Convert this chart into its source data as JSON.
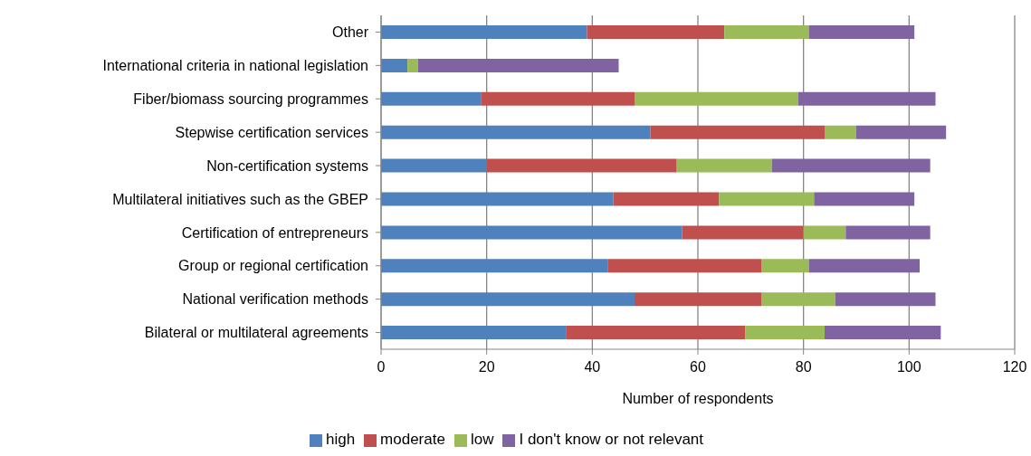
{
  "chart_data": {
    "type": "bar",
    "orientation": "horizontal",
    "stacked": true,
    "xlabel": "Number of respondents",
    "categories": [
      "Other",
      "International criteria in national legislation",
      "Fiber/biomass sourcing programmes",
      "Stepwise certification services",
      "Non-certification systems",
      "Multilateral initiatives such as the GBEP",
      "Certification of entrepreneurs",
      "Group or regional certification",
      "National verification methods",
      "Bilateral or multilateral agreements"
    ],
    "series": [
      {
        "name": "high",
        "color": "#4f81bd",
        "values": [
          39,
          5,
          19,
          51,
          20,
          44,
          57,
          43,
          48,
          35
        ]
      },
      {
        "name": "moderate",
        "color": "#c0504d",
        "values": [
          26,
          0,
          29,
          33,
          36,
          20,
          23,
          29,
          24,
          34
        ]
      },
      {
        "name": "low",
        "color": "#9bbb59",
        "values": [
          16,
          2,
          31,
          6,
          18,
          18,
          8,
          9,
          14,
          15
        ]
      },
      {
        "name": "I don't know or not relevant",
        "color": "#8064a2",
        "values": [
          20,
          38,
          26,
          17,
          30,
          19,
          16,
          21,
          19,
          22
        ]
      }
    ],
    "xlim": [
      0,
      120
    ],
    "xticks": [
      0,
      20,
      40,
      60,
      80,
      100,
      120
    ],
    "grid": "x",
    "legend": "bottom"
  }
}
